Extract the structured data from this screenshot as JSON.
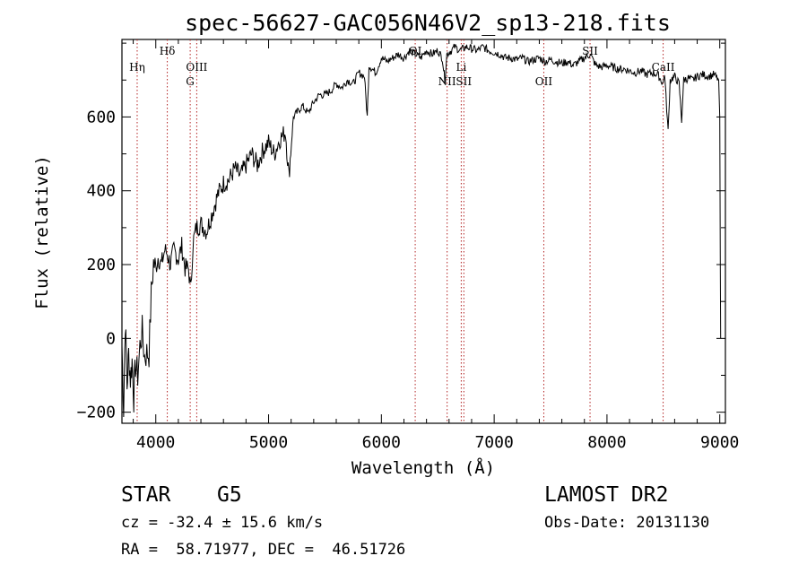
{
  "chart_data": {
    "type": "line",
    "title": "spec-56627-GAC056N46V2_sp13-218.fits",
    "xlabel": "Wavelength (Å)",
    "ylabel": "Flux (relative)",
    "xlim": [
      3700,
      9050
    ],
    "ylim": [
      -230,
      810
    ],
    "x_ticks": [
      4000,
      5000,
      6000,
      7000,
      8000,
      9000
    ],
    "y_ticks": [
      -200,
      0,
      200,
      400,
      600
    ],
    "line_color": "#000000",
    "marker_color": "#b22222",
    "spectrum": [
      [
        3700,
        -20
      ],
      [
        3715,
        -190
      ],
      [
        3730,
        50
      ],
      [
        3745,
        -130
      ],
      [
        3760,
        -40
      ],
      [
        3775,
        -110
      ],
      [
        3790,
        -60
      ],
      [
        3805,
        -160
      ],
      [
        3820,
        -70
      ],
      [
        3840,
        -100
      ],
      [
        3860,
        -20
      ],
      [
        3880,
        20
      ],
      [
        3900,
        -50
      ],
      [
        3920,
        -40
      ],
      [
        3940,
        -40
      ],
      [
        3960,
        120
      ],
      [
        3980,
        205
      ],
      [
        4000,
        190
      ],
      [
        4020,
        220
      ],
      [
        4050,
        200
      ],
      [
        4080,
        240
      ],
      [
        4100,
        230
      ],
      [
        4130,
        200
      ],
      [
        4160,
        240
      ],
      [
        4200,
        215
      ],
      [
        4230,
        250
      ],
      [
        4260,
        190
      ],
      [
        4290,
        190
      ],
      [
        4310,
        130
      ],
      [
        4330,
        260
      ],
      [
        4360,
        300
      ],
      [
        4400,
        310
      ],
      [
        4450,
        290
      ],
      [
        4500,
        340
      ],
      [
        4550,
        390
      ],
      [
        4600,
        420
      ],
      [
        4650,
        430
      ],
      [
        4700,
        460
      ],
      [
        4750,
        440
      ],
      [
        4800,
        470
      ],
      [
        4850,
        500
      ],
      [
        4900,
        470
      ],
      [
        4950,
        510
      ],
      [
        5000,
        530
      ],
      [
        5050,
        500
      ],
      [
        5100,
        540
      ],
      [
        5150,
        560
      ],
      [
        5180,
        440
      ],
      [
        5220,
        600
      ],
      [
        5300,
        630
      ],
      [
        5350,
        610
      ],
      [
        5400,
        640
      ],
      [
        5450,
        660
      ],
      [
        5500,
        660
      ],
      [
        5550,
        670
      ],
      [
        5600,
        690
      ],
      [
        5650,
        680
      ],
      [
        5700,
        700
      ],
      [
        5750,
        690
      ],
      [
        5800,
        720
      ],
      [
        5850,
        710
      ],
      [
        5875,
        600
      ],
      [
        5890,
        740
      ],
      [
        5950,
        720
      ],
      [
        6000,
        760
      ],
      [
        6050,
        750
      ],
      [
        6100,
        760
      ],
      [
        6150,
        770
      ],
      [
        6200,
        760
      ],
      [
        6250,
        780
      ],
      [
        6300,
        770
      ],
      [
        6350,
        760
      ],
      [
        6400,
        780
      ],
      [
        6450,
        770
      ],
      [
        6500,
        780
      ],
      [
        6540,
        760
      ],
      [
        6563,
        700
      ],
      [
        6580,
        770
      ],
      [
        6620,
        780
      ],
      [
        6650,
        790
      ],
      [
        6700,
        780
      ],
      [
        6750,
        790
      ],
      [
        6800,
        785
      ],
      [
        6850,
        780
      ],
      [
        6900,
        790
      ],
      [
        6950,
        780
      ],
      [
        7000,
        775
      ],
      [
        7050,
        770
      ],
      [
        7100,
        760
      ],
      [
        7150,
        760
      ],
      [
        7200,
        755
      ],
      [
        7250,
        760
      ],
      [
        7300,
        750
      ],
      [
        7350,
        755
      ],
      [
        7400,
        760
      ],
      [
        7450,
        750
      ],
      [
        7500,
        755
      ],
      [
        7550,
        750
      ],
      [
        7600,
        745
      ],
      [
        7650,
        750
      ],
      [
        7700,
        740
      ],
      [
        7750,
        750
      ],
      [
        7800,
        760
      ],
      [
        7850,
        770
      ],
      [
        7900,
        740
      ],
      [
        7950,
        735
      ],
      [
        8000,
        740
      ],
      [
        8050,
        735
      ],
      [
        8100,
        730
      ],
      [
        8150,
        730
      ],
      [
        8200,
        725
      ],
      [
        8250,
        720
      ],
      [
        8300,
        725
      ],
      [
        8350,
        715
      ],
      [
        8400,
        720
      ],
      [
        8450,
        715
      ],
      [
        8498,
        690
      ],
      [
        8510,
        720
      ],
      [
        8542,
        560
      ],
      [
        8560,
        700
      ],
      [
        8600,
        710
      ],
      [
        8640,
        690
      ],
      [
        8662,
        590
      ],
      [
        8680,
        700
      ],
      [
        8720,
        705
      ],
      [
        8760,
        700
      ],
      [
        8800,
        710
      ],
      [
        8850,
        715
      ],
      [
        8900,
        710
      ],
      [
        8950,
        715
      ],
      [
        8990,
        700
      ],
      [
        9000,
        600
      ],
      [
        9005,
        200
      ],
      [
        9008,
        0
      ]
    ],
    "lines": [
      {
        "label": "Hη",
        "x": 3835,
        "pos": "top"
      },
      {
        "label": "Hδ",
        "x": 4102,
        "pos": "high"
      },
      {
        "label": "OIII",
        "x": 4363,
        "pos": "top"
      },
      {
        "label": "G",
        "x": 4305,
        "pos": "second"
      },
      {
        "label": "OI",
        "x": 6300,
        "pos": "high"
      },
      {
        "label": "Li",
        "x": 6708,
        "pos": "top"
      },
      {
        "label": "NII",
        "x": 6583,
        "pos": "second"
      },
      {
        "label": "SII",
        "x": 6731,
        "pos": "second"
      },
      {
        "label": "OII",
        "x": 7320,
        "pos": "second",
        "draw_x": 7440
      },
      {
        "label": "SII",
        "x": 7850,
        "pos": "high"
      },
      {
        "label": "CaII",
        "x": 8498,
        "pos": "top"
      }
    ]
  },
  "footer": {
    "object_class": "STAR",
    "subclass": "G5",
    "cz": "cz = -32.4 ± 15.6 km/s",
    "radec": "RA =  58.71977, DEC =  46.51726",
    "survey": "LAMOST DR2",
    "obs_date": "Obs-Date: 20131130"
  }
}
